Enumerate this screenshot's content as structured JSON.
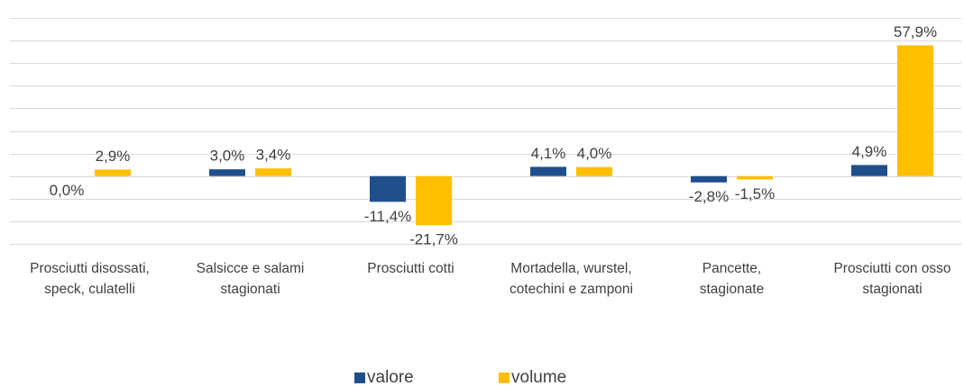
{
  "chart_data": {
    "type": "bar",
    "categories": [
      "Prosciutti disossati,\nspeck, culatelli",
      "Salsicce e salami\nstagionati",
      "Prosciutti cotti",
      "Mortadella, wurstel,\ncotechini e zamponi",
      "Pancette,\nstagionate",
      "Prosciutti con osso\nstagionati"
    ],
    "series": [
      {
        "name": "valore",
        "color": "#1f4e8c",
        "values": [
          0.0,
          3.0,
          -11.4,
          4.1,
          -2.8,
          4.9
        ],
        "value_labels": [
          "0,0%",
          "3,0%",
          "-11,4%",
          "4,1%",
          "-2,8%",
          "4,9%"
        ]
      },
      {
        "name": "volume",
        "color": "#ffbf00",
        "values": [
          2.9,
          3.4,
          -21.7,
          4.0,
          -1.5,
          57.9
        ],
        "value_labels": [
          "2,9%",
          "3,4%",
          "-21,7%",
          "4,0%",
          "-1,5%",
          "57,9%"
        ]
      }
    ],
    "ylim": [
      -30,
      70
    ],
    "yticks": [
      -30,
      -20,
      -10,
      0,
      10,
      20,
      30,
      40,
      50,
      60,
      70
    ],
    "grid": true,
    "legend": "bottom"
  }
}
